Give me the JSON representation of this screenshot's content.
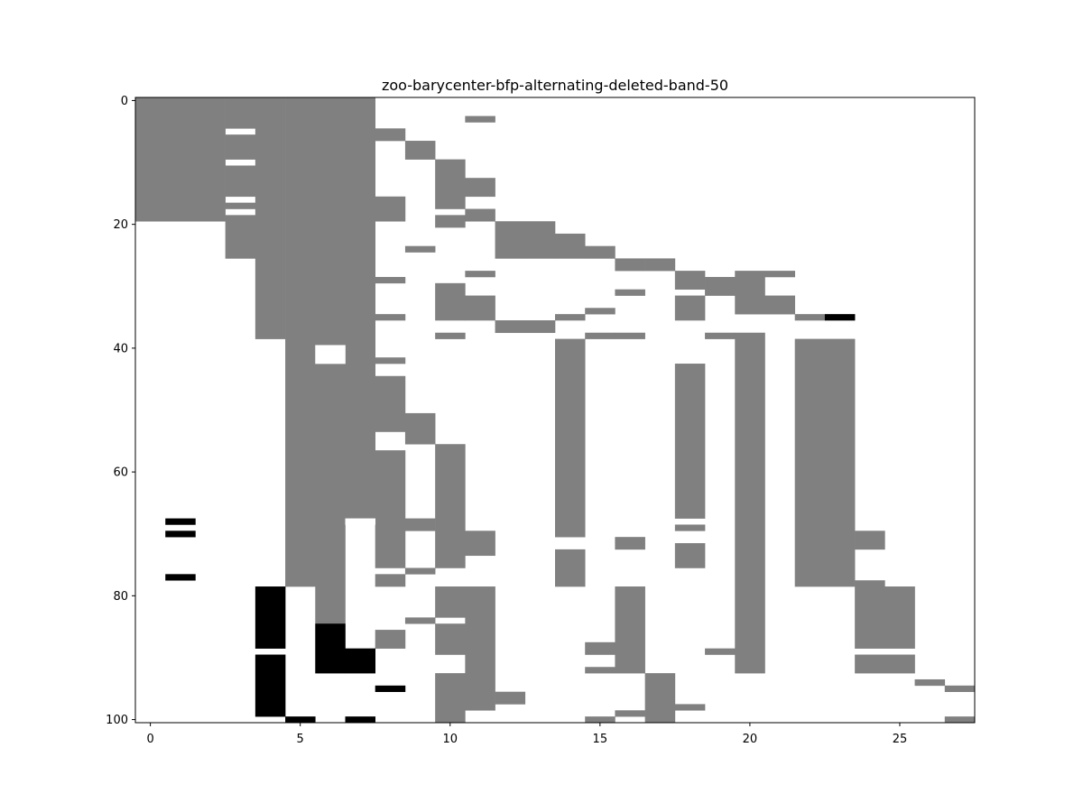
{
  "chart_data": {
    "type": "heatmap",
    "title": "zoo-barycenter-bfp-alternating-deleted-band-50",
    "xlabel": "",
    "ylabel": "",
    "n_cols": 28,
    "n_rows": 101,
    "xlim": [
      -0.5,
      27.5
    ],
    "ylim": [
      100.5,
      -0.5
    ],
    "x_ticks": [
      0,
      5,
      10,
      15,
      20,
      25
    ],
    "y_ticks": [
      0,
      20,
      40,
      60,
      80,
      100
    ],
    "grid": false,
    "legend": "none",
    "colors": {
      "value_1": "#808080",
      "value_2": "#000000",
      "value_0": "#ffffff"
    },
    "gray_cells": [
      {
        "c": 0,
        "r0": 0,
        "r1": 19
      },
      {
        "c": 1,
        "r0": 0,
        "r1": 19
      },
      {
        "c": 2,
        "r0": 0,
        "r1": 19
      },
      {
        "c": 3,
        "r0": 0,
        "r1": 4
      },
      {
        "c": 3,
        "r0": 6,
        "r1": 9
      },
      {
        "c": 3,
        "r0": 11,
        "r1": 15
      },
      {
        "c": 3,
        "r0": 17,
        "r1": 17
      },
      {
        "c": 3,
        "r0": 19,
        "r1": 25
      },
      {
        "c": 4,
        "r0": 0,
        "r1": 38
      },
      {
        "c": 5,
        "r0": 0,
        "r1": 78
      },
      {
        "c": 6,
        "r0": 0,
        "r1": 84
      },
      {
        "c": 7,
        "r0": 0,
        "r1": 67
      },
      {
        "c": 8,
        "r0": 5,
        "r1": 6
      },
      {
        "c": 8,
        "r0": 16,
        "r1": 19
      },
      {
        "c": 8,
        "r0": 29,
        "r1": 29
      },
      {
        "c": 8,
        "r0": 35,
        "r1": 35
      },
      {
        "c": 8,
        "r0": 42,
        "r1": 42
      },
      {
        "c": 8,
        "r0": 45,
        "r1": 53
      },
      {
        "c": 8,
        "r0": 57,
        "r1": 75
      },
      {
        "c": 8,
        "r0": 77,
        "r1": 78
      },
      {
        "c": 8,
        "r0": 86,
        "r1": 88
      },
      {
        "c": 9,
        "r0": 7,
        "r1": 9
      },
      {
        "c": 9,
        "r0": 24,
        "r1": 24
      },
      {
        "c": 9,
        "r0": 51,
        "r1": 55
      },
      {
        "c": 9,
        "r0": 68,
        "r1": 69
      },
      {
        "c": 9,
        "r0": 76,
        "r1": 76
      },
      {
        "c": 9,
        "r0": 84,
        "r1": 84
      },
      {
        "c": 10,
        "r0": 10,
        "r1": 17
      },
      {
        "c": 10,
        "r0": 19,
        "r1": 20
      },
      {
        "c": 10,
        "r0": 30,
        "r1": 35
      },
      {
        "c": 10,
        "r0": 38,
        "r1": 38
      },
      {
        "c": 10,
        "r0": 56,
        "r1": 75
      },
      {
        "c": 10,
        "r0": 79,
        "r1": 83
      },
      {
        "c": 10,
        "r0": 85,
        "r1": 89
      },
      {
        "c": 10,
        "r0": 93,
        "r1": 100
      },
      {
        "c": 11,
        "r0": 3,
        "r1": 3
      },
      {
        "c": 11,
        "r0": 13,
        "r1": 15
      },
      {
        "c": 11,
        "r0": 18,
        "r1": 19
      },
      {
        "c": 11,
        "r0": 28,
        "r1": 28
      },
      {
        "c": 11,
        "r0": 32,
        "r1": 35
      },
      {
        "c": 11,
        "r0": 70,
        "r1": 73
      },
      {
        "c": 11,
        "r0": 79,
        "r1": 98
      },
      {
        "c": 12,
        "r0": 20,
        "r1": 25
      },
      {
        "c": 12,
        "r0": 36,
        "r1": 37
      },
      {
        "c": 12,
        "r0": 96,
        "r1": 97
      },
      {
        "c": 13,
        "r0": 20,
        "r1": 25
      },
      {
        "c": 13,
        "r0": 36,
        "r1": 37
      },
      {
        "c": 14,
        "r0": 22,
        "r1": 25
      },
      {
        "c": 14,
        "r0": 35,
        "r1": 35
      },
      {
        "c": 14,
        "r0": 39,
        "r1": 70
      },
      {
        "c": 14,
        "r0": 73,
        "r1": 78
      },
      {
        "c": 15,
        "r0": 24,
        "r1": 25
      },
      {
        "c": 15,
        "r0": 34,
        "r1": 34
      },
      {
        "c": 15,
        "r0": 38,
        "r1": 38
      },
      {
        "c": 15,
        "r0": 88,
        "r1": 89
      },
      {
        "c": 15,
        "r0": 92,
        "r1": 92
      },
      {
        "c": 15,
        "r0": 100,
        "r1": 100
      },
      {
        "c": 16,
        "r0": 26,
        "r1": 27
      },
      {
        "c": 16,
        "r0": 31,
        "r1": 31
      },
      {
        "c": 16,
        "r0": 38,
        "r1": 38
      },
      {
        "c": 16,
        "r0": 71,
        "r1": 72
      },
      {
        "c": 16,
        "r0": 79,
        "r1": 92
      },
      {
        "c": 16,
        "r0": 99,
        "r1": 99
      },
      {
        "c": 17,
        "r0": 26,
        "r1": 27
      },
      {
        "c": 17,
        "r0": 93,
        "r1": 100
      },
      {
        "c": 18,
        "r0": 28,
        "r1": 30
      },
      {
        "c": 18,
        "r0": 32,
        "r1": 35
      },
      {
        "c": 18,
        "r0": 43,
        "r1": 67
      },
      {
        "c": 18,
        "r0": 69,
        "r1": 69
      },
      {
        "c": 18,
        "r0": 72,
        "r1": 75
      },
      {
        "c": 18,
        "r0": 98,
        "r1": 98
      },
      {
        "c": 19,
        "r0": 29,
        "r1": 31
      },
      {
        "c": 19,
        "r0": 38,
        "r1": 38
      },
      {
        "c": 19,
        "r0": 89,
        "r1": 89
      },
      {
        "c": 20,
        "r0": 28,
        "r1": 34
      },
      {
        "c": 20,
        "r0": 38,
        "r1": 92
      },
      {
        "c": 21,
        "r0": 28,
        "r1": 28
      },
      {
        "c": 21,
        "r0": 32,
        "r1": 34
      },
      {
        "c": 22,
        "r0": 35,
        "r1": 35
      },
      {
        "c": 22,
        "r0": 39,
        "r1": 78
      },
      {
        "c": 23,
        "r0": 39,
        "r1": 78
      },
      {
        "c": 24,
        "r0": 70,
        "r1": 72
      },
      {
        "c": 24,
        "r0": 78,
        "r1": 88
      },
      {
        "c": 24,
        "r0": 90,
        "r1": 92
      },
      {
        "c": 25,
        "r0": 79,
        "r1": 88
      },
      {
        "c": 25,
        "r0": 90,
        "r1": 92
      },
      {
        "c": 26,
        "r0": 94,
        "r1": 94
      },
      {
        "c": 27,
        "r0": 95,
        "r1": 95
      },
      {
        "c": 27,
        "r0": 100,
        "r1": 100
      }
    ],
    "black_cells": [
      {
        "c": 1,
        "r0": 68,
        "r1": 68
      },
      {
        "c": 1,
        "r0": 70,
        "r1": 70
      },
      {
        "c": 1,
        "r0": 77,
        "r1": 77
      },
      {
        "c": 4,
        "r0": 79,
        "r1": 88
      },
      {
        "c": 4,
        "r0": 90,
        "r1": 99
      },
      {
        "c": 5,
        "r0": 100,
        "r1": 100
      },
      {
        "c": 6,
        "r0": 85,
        "r1": 92
      },
      {
        "c": 7,
        "r0": 89,
        "r1": 92
      },
      {
        "c": 7,
        "r0": 100,
        "r1": 100
      },
      {
        "c": 8,
        "r0": 95,
        "r1": 95
      },
      {
        "c": 23,
        "r0": 35,
        "r1": 35
      }
    ],
    "white_gaps_in_gray": [
      {
        "c": 6,
        "r0": 40,
        "r1": 42
      },
      {
        "c": 7,
        "r0": 68,
        "r1": 68
      },
      {
        "c": 1,
        "r0": 39,
        "r1": 42
      }
    ]
  }
}
